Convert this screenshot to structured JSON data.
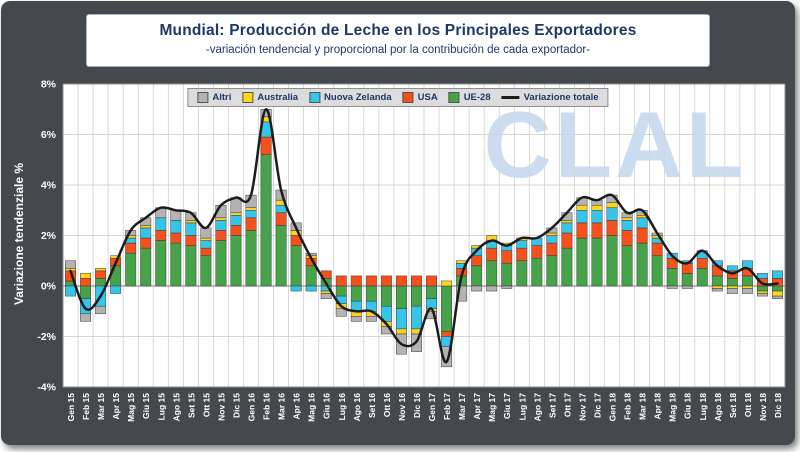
{
  "watermark": {
    "text": "CLAL"
  },
  "colors": {
    "frame": "#45494d",
    "plot_bg": "#ffffff",
    "grid": "#c9c9c9",
    "zero_line": "#7a7a7a",
    "plot_border": "#8e8e8e",
    "axis_text": "#ffffff",
    "title_text": "#1f3864",
    "legend_bg": "#dcdcdc",
    "watermark": "#c5d9ec"
  },
  "chart_data": {
    "type": "bar",
    "variant": "stacked-bar-with-line",
    "title": "Mundial: Producción de Leche en los Principales Exportadores",
    "subtitle": "-variación tendencial y proporcional por la contribución de cada exportador-",
    "ylabel": "Variazione tendenziale %",
    "xlabel": "",
    "ylim": [
      -4,
      8
    ],
    "ytick_step": 2,
    "ytick_labels": [
      "8%",
      "6%",
      "4%",
      "2%",
      "0%",
      "-2%",
      "-4%"
    ],
    "grid": true,
    "legend_position": "top-center",
    "categories": [
      "Gen 15",
      "Feb 15",
      "Mar 15",
      "Apr 15",
      "Mag 15",
      "Giu 15",
      "Lug 15",
      "Ago 15",
      "Set 15",
      "Ott 15",
      "Nov 15",
      "Dic 15",
      "Gen 16",
      "Feb 16",
      "Mar 16",
      "Apr 16",
      "Mag 16",
      "Giu 16",
      "Lug 16",
      "Ago 16",
      "Set 16",
      "Ott 16",
      "Nov 16",
      "Dic 16",
      "Gen 17",
      "Feb 17",
      "Mar 17",
      "Apr 17",
      "Mag 17",
      "Giu 17",
      "Lug 17",
      "Ago 17",
      "Set 17",
      "Ott 17",
      "Nov 17",
      "Dic 17",
      "Gen 18",
      "Feb 18",
      "Mar 18",
      "Apr 18",
      "Mag 18",
      "Giu 18",
      "Lug 18",
      "Ago 18",
      "Set 18",
      "Ott 18",
      "Nov 18",
      "Dic 18"
    ],
    "series": [
      {
        "name": "Altri",
        "color": "#b3b3b3",
        "values": [
          0.3,
          -0.3,
          -0.3,
          0.0,
          0.2,
          0.3,
          0.4,
          0.4,
          0.3,
          0.4,
          0.5,
          0.6,
          0.5,
          0.3,
          0.4,
          0.3,
          0.1,
          -0.2,
          -0.3,
          -0.2,
          -0.2,
          -0.3,
          -0.8,
          -0.7,
          -0.3,
          -0.8,
          -0.6,
          -0.2,
          -0.2,
          -0.1,
          0.0,
          0.0,
          0.2,
          0.3,
          0.3,
          0.2,
          0.3,
          0.2,
          0.2,
          0.1,
          -0.1,
          -0.1,
          0.0,
          -0.1,
          -0.2,
          -0.2,
          -0.1,
          -0.1
        ]
      },
      {
        "name": "Australia",
        "color": "#ffd41c",
        "values": [
          0.1,
          0.2,
          0.1,
          0.1,
          0.1,
          0.1,
          0.0,
          0.0,
          0.1,
          0.1,
          0.1,
          0.1,
          0.1,
          0.2,
          0.2,
          0.2,
          0.1,
          -0.1,
          -0.2,
          -0.2,
          -0.2,
          -0.2,
          -0.2,
          -0.2,
          -0.1,
          0.2,
          0.1,
          0.1,
          0.2,
          0.1,
          0.1,
          0.0,
          0.1,
          0.1,
          0.2,
          0.2,
          0.2,
          0.1,
          0.1,
          0.1,
          0.0,
          0.0,
          0.0,
          -0.1,
          -0.1,
          -0.1,
          -0.1,
          -0.2
        ]
      },
      {
        "name": "Nuova Zelanda",
        "color": "#36c5ea",
        "values": [
          -0.4,
          -0.6,
          -0.8,
          -0.3,
          0.2,
          0.4,
          0.5,
          0.5,
          0.5,
          0.3,
          0.4,
          0.4,
          0.3,
          0.6,
          0.3,
          -0.2,
          -0.2,
          -0.2,
          -0.3,
          -0.4,
          -0.4,
          -0.6,
          -0.8,
          -0.9,
          -0.4,
          -0.4,
          0.2,
          0.3,
          0.3,
          0.2,
          0.3,
          0.3,
          0.3,
          0.4,
          0.5,
          0.5,
          0.5,
          0.4,
          0.4,
          0.2,
          0.2,
          0.1,
          0.3,
          0.2,
          0.2,
          0.3,
          0.2,
          0.3
        ]
      },
      {
        "name": "USA",
        "color": "#f4511c",
        "values": [
          0.4,
          0.3,
          0.3,
          0.3,
          0.4,
          0.4,
          0.4,
          0.4,
          0.4,
          0.3,
          0.4,
          0.4,
          0.5,
          0.7,
          0.5,
          0.4,
          0.3,
          0.3,
          0.4,
          0.4,
          0.4,
          0.4,
          0.4,
          0.4,
          0.4,
          -0.2,
          0.3,
          0.4,
          0.5,
          0.5,
          0.5,
          0.5,
          0.5,
          0.6,
          0.6,
          0.6,
          0.6,
          0.6,
          0.6,
          0.5,
          0.4,
          0.4,
          0.4,
          0.4,
          0.3,
          0.3,
          0.3,
          0.3
        ]
      },
      {
        "name": "UE-28",
        "color": "#46a349",
        "values": [
          0.2,
          -0.5,
          0.3,
          0.8,
          1.3,
          1.5,
          1.8,
          1.7,
          1.6,
          1.2,
          1.8,
          2.0,
          2.2,
          5.2,
          2.4,
          1.6,
          0.8,
          0.3,
          -0.4,
          -0.6,
          -0.6,
          -0.8,
          -0.9,
          -0.8,
          -0.5,
          -1.8,
          0.4,
          0.8,
          1.0,
          0.9,
          1.0,
          1.1,
          1.2,
          1.5,
          1.9,
          1.9,
          2.0,
          1.6,
          1.7,
          1.2,
          0.7,
          0.5,
          0.7,
          0.4,
          0.3,
          0.4,
          -0.2,
          -0.2
        ]
      }
    ],
    "line": {
      "name": "Variazione totale",
      "color": "#1c1c1c",
      "values": [
        0.6,
        -0.9,
        -0.4,
        0.9,
        2.2,
        2.7,
        3.1,
        3.0,
        2.9,
        2.3,
        3.2,
        3.5,
        3.6,
        7.0,
        3.8,
        2.3,
        1.1,
        0.1,
        -0.8,
        -1.0,
        -1.0,
        -1.5,
        -2.3,
        -2.2,
        -0.9,
        -3.0,
        0.4,
        1.4,
        1.8,
        1.6,
        1.9,
        1.9,
        2.3,
        2.9,
        3.5,
        3.4,
        3.6,
        2.9,
        3.0,
        2.1,
        1.2,
        0.9,
        1.4,
        0.8,
        0.5,
        0.7,
        0.1,
        0.1
      ]
    }
  }
}
